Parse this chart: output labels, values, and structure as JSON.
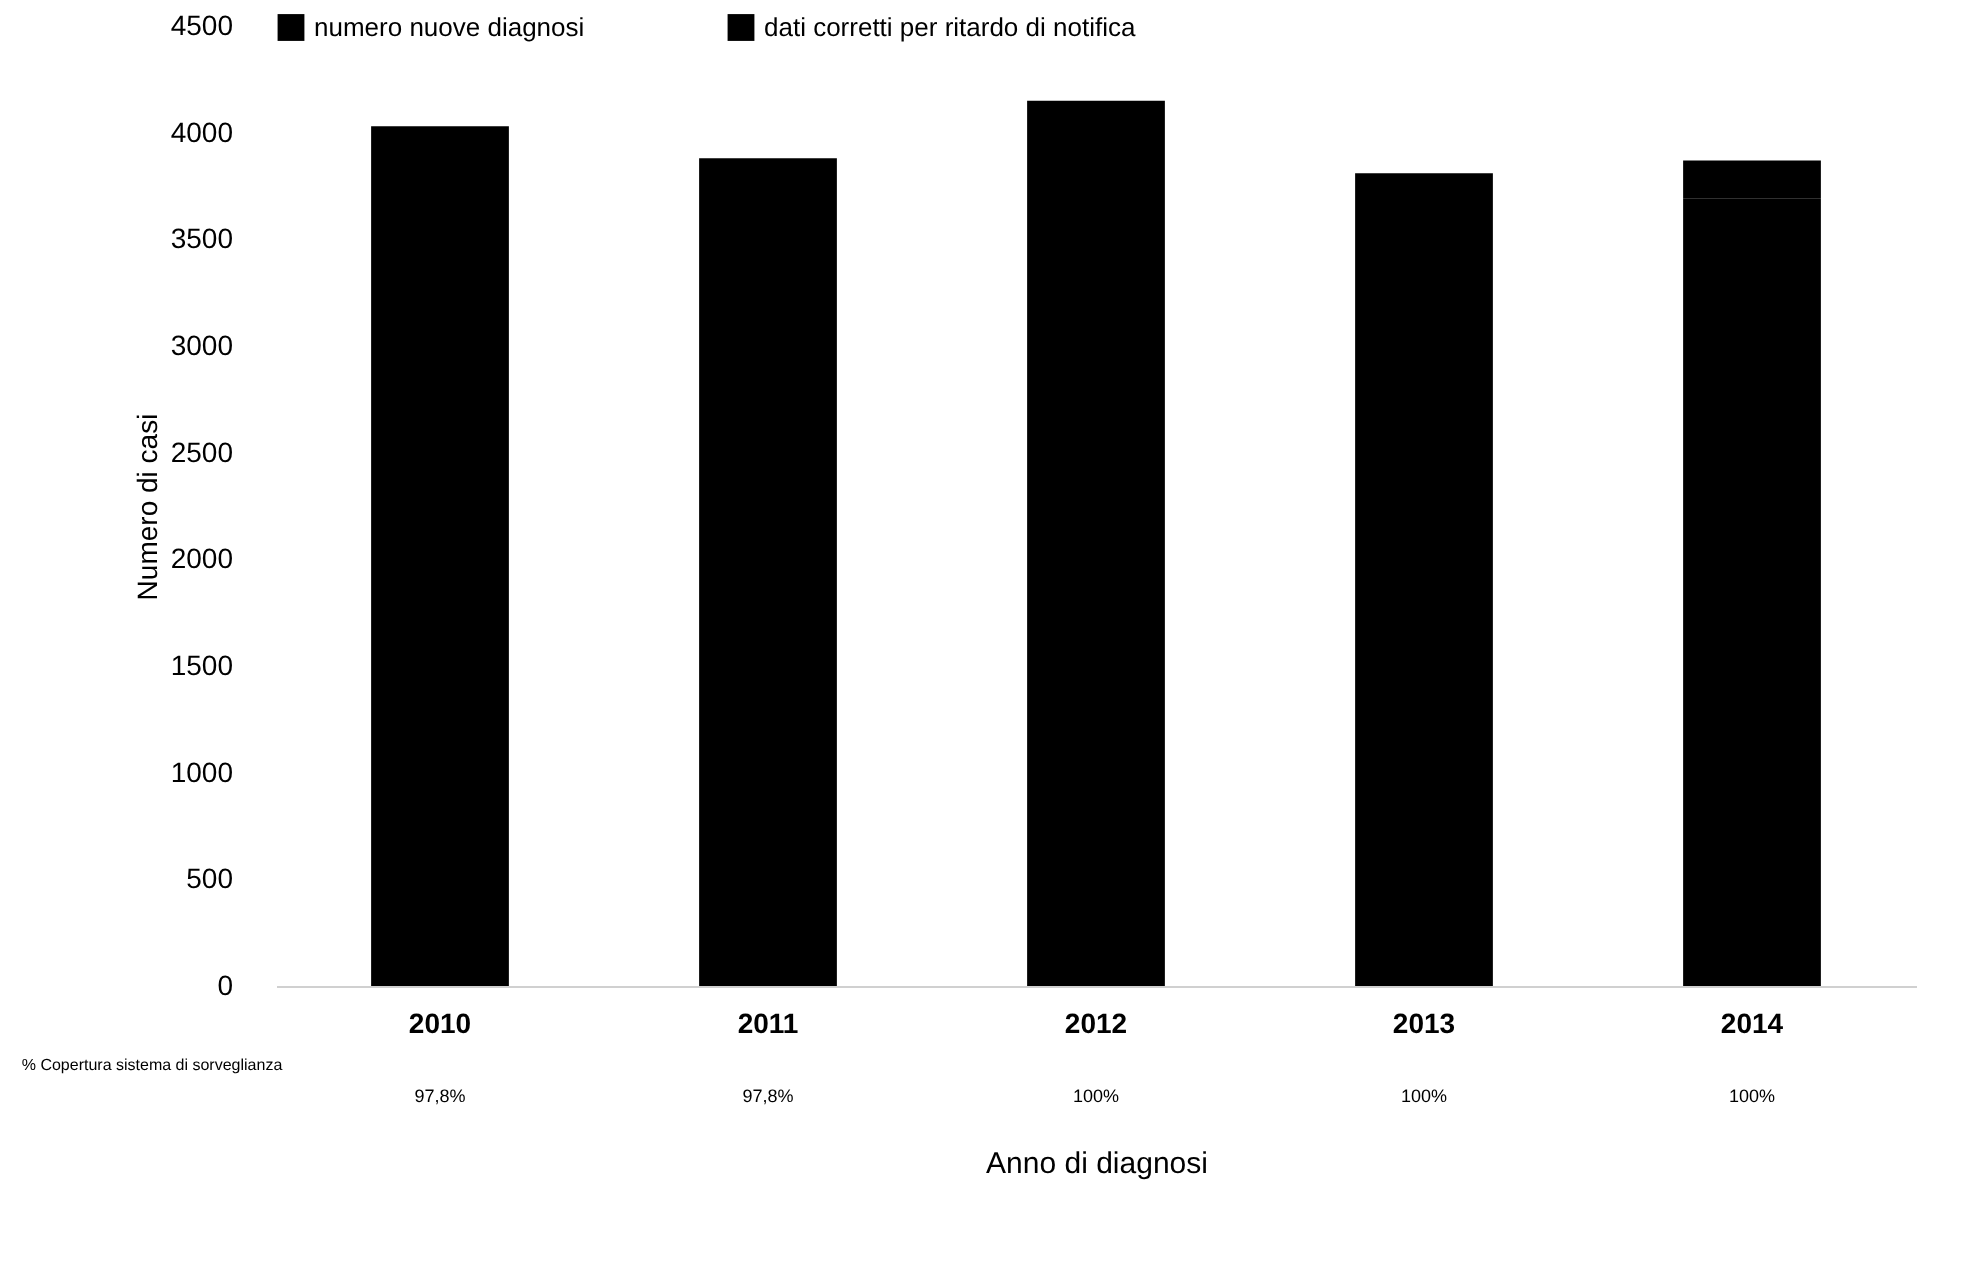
{
  "chart_data": {
    "type": "bar",
    "stacked": true,
    "xlabel": "Anno di diagnosi",
    "ylabel": "Numero di casi",
    "categories": [
      "2010",
      "2011",
      "2012",
      "2013",
      "2014"
    ],
    "series": [
      {
        "name": "numero nuove diagnosi",
        "color": "#000000",
        "values": [
          4030,
          3880,
          4150,
          3810,
          3690
        ]
      },
      {
        "name": "dati corretti per ritardo di notifica",
        "color": "#000000",
        "values": [
          null,
          null,
          null,
          null,
          180
        ]
      }
    ],
    "ylim": [
      0,
      4500
    ],
    "yticks": [
      0,
      500,
      1000,
      1500,
      2000,
      2500,
      3000,
      3500,
      4000,
      4500
    ],
    "grid": false,
    "legend": "top",
    "annotations": [
      "% Copertura sistema di sorveglianza",
      "97,8%",
      "97,8%",
      "100%",
      "100%",
      "100%"
    ]
  }
}
